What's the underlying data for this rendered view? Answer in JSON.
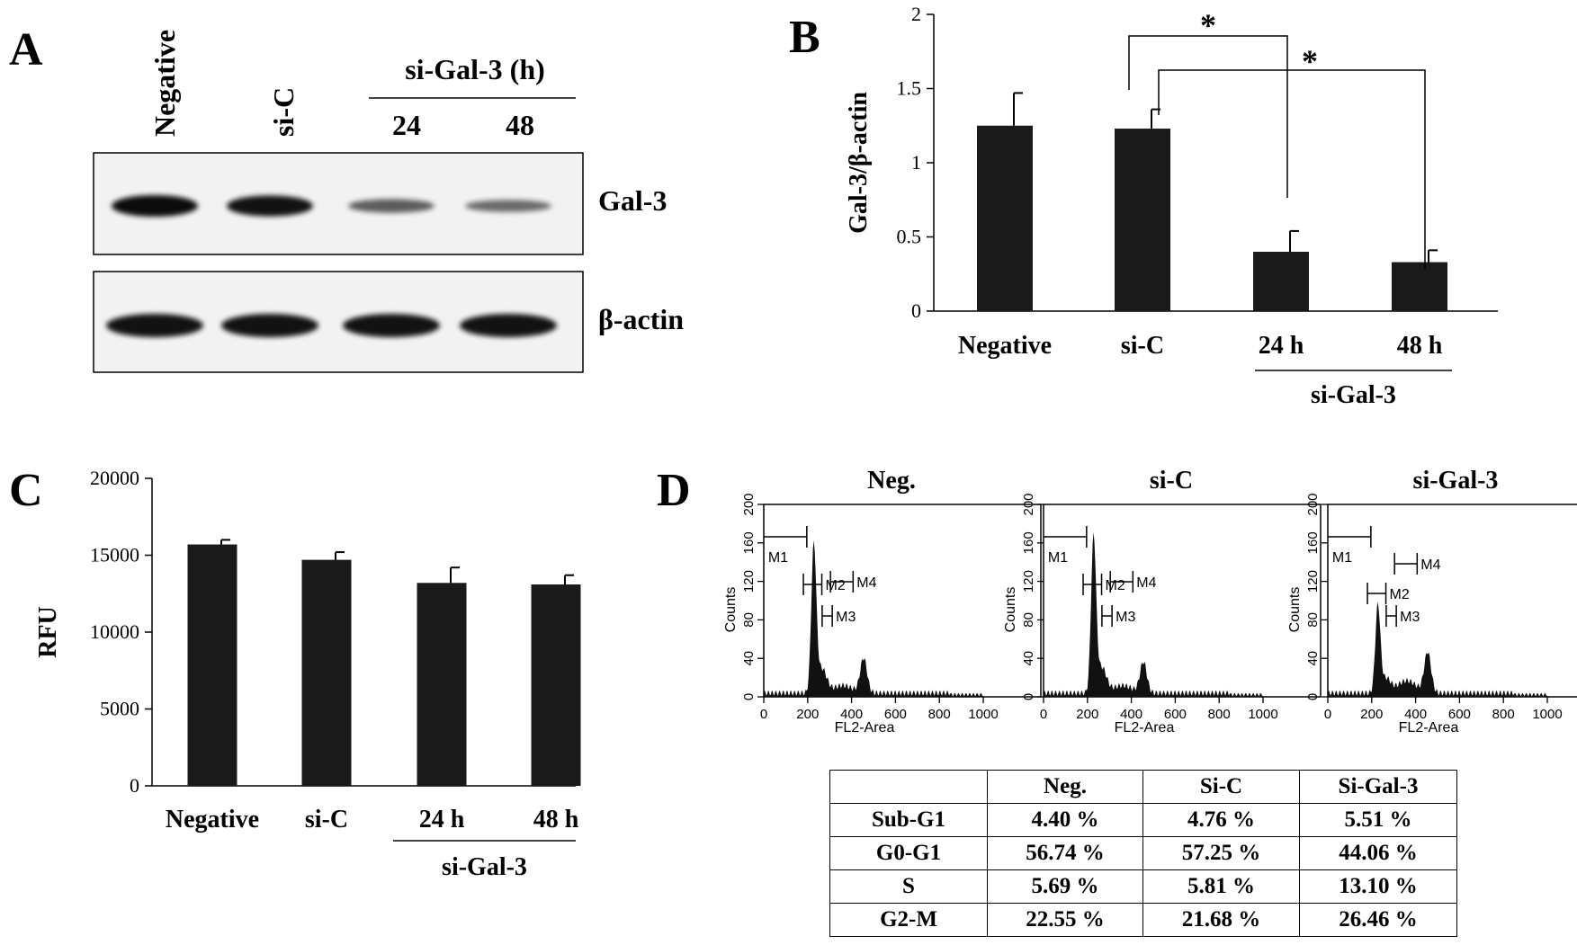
{
  "panel_letters": {
    "a": "A",
    "b": "B",
    "c": "C",
    "d": "D"
  },
  "panel_a": {
    "lanes": [
      "Negative",
      "si-C",
      "24",
      "48"
    ],
    "group_label": "si-Gal-3 (h)",
    "blots": [
      "Gal-3",
      "β-actin"
    ],
    "band_intensity": {
      "Gal-3": [
        1.0,
        0.95,
        0.45,
        0.35
      ],
      "β-actin": [
        1.0,
        1.0,
        1.0,
        1.0
      ]
    }
  },
  "panel_d": {
    "histograms": [
      {
        "title": "Neg.",
        "g1_peak": 152,
        "g2_peak": 36
      },
      {
        "title": "si-C",
        "g1_peak": 160,
        "g2_peak": 32
      },
      {
        "title": "si-Gal-3",
        "g1_peak": 90,
        "g2_peak": 42
      }
    ],
    "y_axis_label": "Counts",
    "x_axis_label": "FL2-Area",
    "x_ticks": [
      "0",
      "200",
      "400",
      "600",
      "800",
      "1000"
    ],
    "y_ticks": [
      "0",
      "40",
      "80",
      "120",
      "160",
      "200"
    ],
    "markers": [
      "M1",
      "M2",
      "M3",
      "M4"
    ],
    "table": {
      "header": [
        "",
        "Neg.",
        "Si-C",
        "Si-Gal-3"
      ],
      "rows": [
        [
          "Sub-G1",
          "4.40 %",
          "4.76 %",
          "5.51 %"
        ],
        [
          "G0-G1",
          "56.74 %",
          "57.25 %",
          "44.06 %"
        ],
        [
          "S",
          "5.69 %",
          "5.81 %",
          "13.10 %"
        ],
        [
          "G2-M",
          "22.55 %",
          "21.68 %",
          "26.46 %"
        ]
      ]
    }
  },
  "chart_data": [
    {
      "type": "bar",
      "categories": [
        "Negative",
        "si-C",
        "24 h",
        "48 h"
      ],
      "values": [
        1.25,
        1.23,
        0.4,
        0.33
      ],
      "errors": [
        0.22,
        0.13,
        0.14,
        0.08
      ],
      "ylabel": "Gal-3/β-actin",
      "group_label": "si-Gal-3",
      "ylim": [
        0,
        2
      ],
      "yticks": [
        0,
        0.5,
        1,
        1.5,
        2
      ],
      "significance": [
        {
          "from": "si-C",
          "to": "24 h",
          "label": "*"
        },
        {
          "from": "si-C",
          "to": "48 h",
          "label": "*"
        }
      ]
    },
    {
      "type": "bar",
      "categories": [
        "Negative",
        "si-C",
        "24 h",
        "48 h"
      ],
      "values": [
        15700,
        14700,
        13200,
        13100
      ],
      "errors": [
        300,
        500,
        1000,
        600
      ],
      "ylabel": "RFU",
      "group_label": "si-Gal-3",
      "ylim": [
        0,
        20000
      ],
      "yticks": [
        0,
        5000,
        10000,
        15000,
        20000
      ]
    }
  ]
}
